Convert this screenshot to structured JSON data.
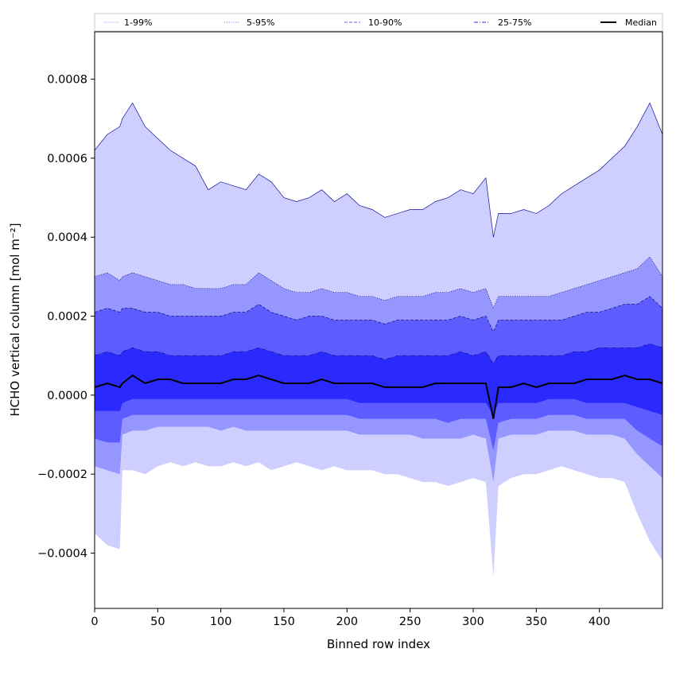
{
  "chart_data": {
    "type": "area",
    "title": "",
    "xlabel": "Binned row index",
    "ylabel": "HCHO vertical column [mol m⁻²]",
    "xlim": [
      0,
      450
    ],
    "ylim": [
      -0.00054,
      0.00092
    ],
    "grid": false,
    "legend_placement": "top",
    "x_ticks": [
      0,
      50,
      100,
      150,
      200,
      250,
      300,
      350,
      400
    ],
    "x_tick_labels": [
      "0",
      "50",
      "100",
      "150",
      "200",
      "250",
      "300",
      "350",
      "400"
    ],
    "y_ticks": [
      -0.0004,
      -0.0002,
      0.0,
      0.0002,
      0.0004,
      0.0006,
      0.0008
    ],
    "y_tick_labels": [
      "−0.0004",
      "−0.0002",
      "0.0000",
      "0.0002",
      "0.0004",
      "0.0006",
      "0.0008"
    ],
    "legend": [
      {
        "label": "1-99%",
        "color": "#cfcfff",
        "style": "solid"
      },
      {
        "label": "5-95%",
        "color": "#8080ff",
        "style": "dotted"
      },
      {
        "label": "10-90%",
        "color": "#6060ff",
        "style": "dashed"
      },
      {
        "label": "25-75%",
        "color": "#3030ff",
        "style": "dashdot"
      },
      {
        "label": "Median",
        "color": "#000000",
        "style": "solid"
      }
    ],
    "x": [
      0,
      10,
      20,
      22,
      30,
      40,
      50,
      60,
      70,
      80,
      90,
      100,
      110,
      120,
      130,
      140,
      150,
      160,
      170,
      180,
      190,
      200,
      210,
      220,
      230,
      240,
      250,
      260,
      270,
      280,
      290,
      300,
      310,
      316,
      320,
      330,
      340,
      350,
      360,
      370,
      380,
      390,
      400,
      410,
      420,
      430,
      440,
      450
    ],
    "series": [
      {
        "name": "1-99%",
        "color": "#cfcfff",
        "upper": [
          0.00062,
          0.00066,
          0.00068,
          0.0007,
          0.00074,
          0.00068,
          0.00065,
          0.00062,
          0.0006,
          0.00058,
          0.00052,
          0.00054,
          0.00053,
          0.00052,
          0.00056,
          0.00054,
          0.0005,
          0.00049,
          0.0005,
          0.00052,
          0.00049,
          0.00051,
          0.00048,
          0.00047,
          0.00045,
          0.00046,
          0.00047,
          0.00047,
          0.00049,
          0.0005,
          0.00052,
          0.00051,
          0.00055,
          0.0004,
          0.00046,
          0.00046,
          0.00047,
          0.00046,
          0.00048,
          0.00051,
          0.00053,
          0.00055,
          0.00057,
          0.0006,
          0.00063,
          0.00068,
          0.00074,
          0.00066
        ],
        "lower": [
          -0.00035,
          -0.00038,
          -0.00039,
          -0.00019,
          -0.00019,
          -0.0002,
          -0.00018,
          -0.00017,
          -0.00018,
          -0.00017,
          -0.00018,
          -0.00018,
          -0.00017,
          -0.00018,
          -0.00017,
          -0.00019,
          -0.00018,
          -0.00017,
          -0.00018,
          -0.00019,
          -0.00018,
          -0.00019,
          -0.00019,
          -0.00019,
          -0.0002,
          -0.0002,
          -0.00021,
          -0.00022,
          -0.00022,
          -0.00023,
          -0.00022,
          -0.00021,
          -0.00022,
          -0.00046,
          -0.00023,
          -0.00021,
          -0.0002,
          -0.0002,
          -0.00019,
          -0.00018,
          -0.00019,
          -0.0002,
          -0.00021,
          -0.00021,
          -0.00022,
          -0.0003,
          -0.00037,
          -0.00042
        ]
      },
      {
        "name": "5-95%",
        "color": "#9696ff",
        "upper": [
          0.0003,
          0.00031,
          0.00029,
          0.0003,
          0.00031,
          0.0003,
          0.00029,
          0.00028,
          0.00028,
          0.00027,
          0.00027,
          0.00027,
          0.00028,
          0.00028,
          0.00031,
          0.00029,
          0.00027,
          0.00026,
          0.00026,
          0.00027,
          0.00026,
          0.00026,
          0.00025,
          0.00025,
          0.00024,
          0.00025,
          0.00025,
          0.00025,
          0.00026,
          0.00026,
          0.00027,
          0.00026,
          0.00027,
          0.00022,
          0.00025,
          0.00025,
          0.00025,
          0.00025,
          0.00025,
          0.00026,
          0.00027,
          0.00028,
          0.00029,
          0.0003,
          0.00031,
          0.00032,
          0.00035,
          0.0003
        ],
        "lower": [
          -0.00018,
          -0.00019,
          -0.0002,
          -0.0001,
          -9e-05,
          -9e-05,
          -8e-05,
          -8e-05,
          -8e-05,
          -8e-05,
          -8e-05,
          -9e-05,
          -8e-05,
          -9e-05,
          -9e-05,
          -9e-05,
          -9e-05,
          -9e-05,
          -9e-05,
          -9e-05,
          -9e-05,
          -9e-05,
          -0.0001,
          -0.0001,
          -0.0001,
          -0.0001,
          -0.0001,
          -0.00011,
          -0.00011,
          -0.00011,
          -0.00011,
          -0.0001,
          -0.00011,
          -0.00022,
          -0.00011,
          -0.0001,
          -0.0001,
          -0.0001,
          -9e-05,
          -9e-05,
          -9e-05,
          -0.0001,
          -0.0001,
          -0.0001,
          -0.00011,
          -0.00015,
          -0.00018,
          -0.00021
        ]
      },
      {
        "name": "10-90%",
        "color": "#5c5cff",
        "upper": [
          0.00021,
          0.00022,
          0.00021,
          0.00022,
          0.00022,
          0.00021,
          0.00021,
          0.0002,
          0.0002,
          0.0002,
          0.0002,
          0.0002,
          0.00021,
          0.00021,
          0.00023,
          0.00021,
          0.0002,
          0.00019,
          0.0002,
          0.0002,
          0.00019,
          0.00019,
          0.00019,
          0.00019,
          0.00018,
          0.00019,
          0.00019,
          0.00019,
          0.00019,
          0.00019,
          0.0002,
          0.00019,
          0.0002,
          0.00016,
          0.00019,
          0.00019,
          0.00019,
          0.00019,
          0.00019,
          0.00019,
          0.0002,
          0.00021,
          0.00021,
          0.00022,
          0.00023,
          0.00023,
          0.00025,
          0.00022
        ],
        "lower": [
          -0.00011,
          -0.00012,
          -0.00012,
          -6e-05,
          -5e-05,
          -5e-05,
          -5e-05,
          -5e-05,
          -5e-05,
          -5e-05,
          -5e-05,
          -5e-05,
          -5e-05,
          -5e-05,
          -5e-05,
          -5e-05,
          -5e-05,
          -5e-05,
          -5e-05,
          -5e-05,
          -5e-05,
          -5e-05,
          -6e-05,
          -6e-05,
          -6e-05,
          -6e-05,
          -6e-05,
          -6e-05,
          -6e-05,
          -7e-05,
          -6e-05,
          -6e-05,
          -6e-05,
          -0.00014,
          -7e-05,
          -6e-05,
          -6e-05,
          -6e-05,
          -5e-05,
          -5e-05,
          -5e-05,
          -6e-05,
          -6e-05,
          -6e-05,
          -6e-05,
          -9e-05,
          -0.00011,
          -0.00013
        ]
      },
      {
        "name": "25-75%",
        "color": "#2a2aff",
        "upper": [
          0.0001,
          0.00011,
          0.0001,
          0.00011,
          0.00012,
          0.00011,
          0.00011,
          0.0001,
          0.0001,
          0.0001,
          0.0001,
          0.0001,
          0.00011,
          0.00011,
          0.00012,
          0.00011,
          0.0001,
          0.0001,
          0.0001,
          0.00011,
          0.0001,
          0.0001,
          0.0001,
          0.0001,
          9e-05,
          0.0001,
          0.0001,
          0.0001,
          0.0001,
          0.0001,
          0.00011,
          0.0001,
          0.00011,
          8e-05,
          0.0001,
          0.0001,
          0.0001,
          0.0001,
          0.0001,
          0.0001,
          0.00011,
          0.00011,
          0.00012,
          0.00012,
          0.00012,
          0.00012,
          0.00013,
          0.00012
        ],
        "lower": [
          -4e-05,
          -4e-05,
          -4e-05,
          -2e-05,
          -1e-05,
          -1e-05,
          -1e-05,
          -1e-05,
          -1e-05,
          -1e-05,
          -1e-05,
          -1e-05,
          -1e-05,
          -1e-05,
          -1e-05,
          -1e-05,
          -1e-05,
          -1e-05,
          -1e-05,
          -1e-05,
          -1e-05,
          -1e-05,
          -2e-05,
          -2e-05,
          -2e-05,
          -2e-05,
          -2e-05,
          -2e-05,
          -2e-05,
          -2e-05,
          -2e-05,
          -2e-05,
          -2e-05,
          -5e-05,
          -2e-05,
          -2e-05,
          -2e-05,
          -2e-05,
          -1e-05,
          -1e-05,
          -1e-05,
          -2e-05,
          -2e-05,
          -2e-05,
          -2e-05,
          -3e-05,
          -4e-05,
          -5e-05
        ]
      },
      {
        "name": "Median",
        "color": "#000000",
        "values": [
          2e-05,
          3e-05,
          2e-05,
          3e-05,
          5e-05,
          3e-05,
          4e-05,
          4e-05,
          3e-05,
          3e-05,
          3e-05,
          3e-05,
          4e-05,
          4e-05,
          5e-05,
          4e-05,
          3e-05,
          3e-05,
          3e-05,
          4e-05,
          3e-05,
          3e-05,
          3e-05,
          3e-05,
          2e-05,
          2e-05,
          2e-05,
          2e-05,
          3e-05,
          3e-05,
          3e-05,
          3e-05,
          3e-05,
          -6e-05,
          2e-05,
          2e-05,
          3e-05,
          2e-05,
          3e-05,
          3e-05,
          3e-05,
          4e-05,
          4e-05,
          4e-05,
          5e-05,
          4e-05,
          4e-05,
          3e-05
        ]
      }
    ]
  }
}
